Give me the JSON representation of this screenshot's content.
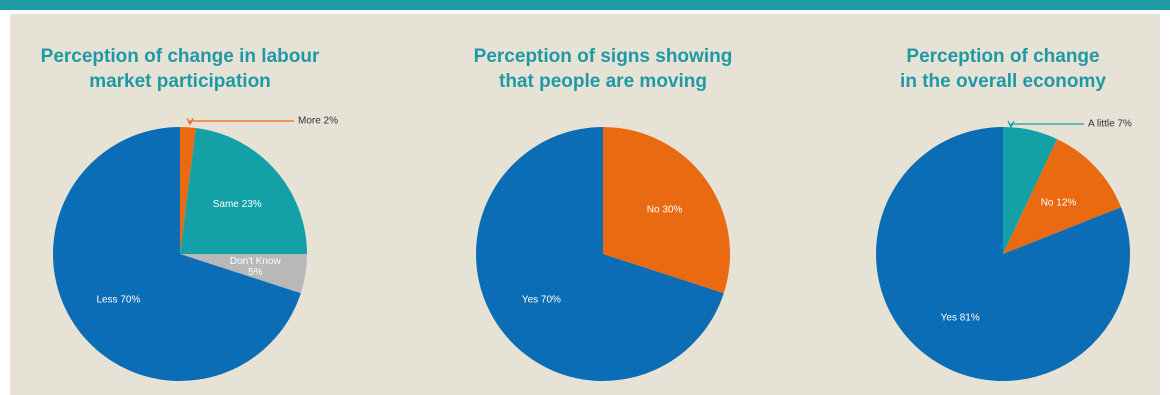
{
  "colors": {
    "header_bar": "#1f9aa4",
    "panel_background": "#e7e2d6",
    "title": "#1f9aa4",
    "blue": "#0b6db5",
    "teal": "#13a0a6",
    "orange": "#ea6a12",
    "grey": "#b8b8b8"
  },
  "chart_data": [
    {
      "type": "pie",
      "title_lines": [
        "Perception of change in labour",
        "market participation"
      ],
      "slices": [
        {
          "label": "More 2%",
          "value": 2,
          "color": "orange",
          "label_style": "callout"
        },
        {
          "label": "Same 23%",
          "value": 23,
          "color": "teal",
          "label_style": "inside"
        },
        {
          "label_lines": [
            "Don't Know",
            "5%"
          ],
          "value": 5,
          "color": "grey",
          "label_style": "inside"
        },
        {
          "label": "Less 70%",
          "value": 70,
          "color": "blue",
          "label_style": "inside"
        }
      ]
    },
    {
      "type": "pie",
      "title_lines": [
        "Perception of signs showing",
        "that people are moving"
      ],
      "slices": [
        {
          "label": "No 30%",
          "value": 30,
          "color": "orange",
          "label_style": "inside"
        },
        {
          "label": "Yes 70%",
          "value": 70,
          "color": "blue",
          "label_style": "inside"
        }
      ]
    },
    {
      "type": "pie",
      "title_lines": [
        "Perception of change",
        "in the overall economy"
      ],
      "slices": [
        {
          "label": "A little 7%",
          "value": 7,
          "color": "teal",
          "label_style": "callout"
        },
        {
          "label": "No 12%",
          "value": 12,
          "color": "orange",
          "label_style": "inside"
        },
        {
          "label": "Yes 81%",
          "value": 81,
          "color": "blue",
          "label_style": "inside"
        }
      ]
    }
  ]
}
